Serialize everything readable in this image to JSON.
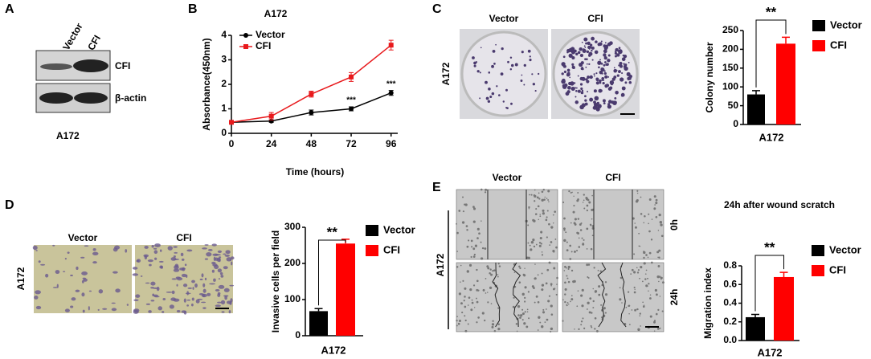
{
  "panel_labels": [
    "A",
    "B",
    "C",
    "D",
    "E"
  ],
  "blot": {
    "lanes": [
      "Vector",
      "CFI"
    ],
    "rows": [
      "CFI",
      "β-actin"
    ],
    "cell_line": "A172"
  },
  "colony_images": {
    "columns": [
      "Vector",
      "CFI"
    ],
    "row": "A172"
  },
  "invasion_images": {
    "columns": [
      "Vector",
      "CFI"
    ],
    "row": "A172"
  },
  "wound_images": {
    "columns": [
      "Vector",
      "CFI"
    ],
    "rows": [
      "0h",
      "24h"
    ],
    "row_group": "A172"
  },
  "chart_data": [
    {
      "type": "line",
      "title": "A172",
      "xlabel": "Time (hours)",
      "ylabel": "Absorbance(450nm)",
      "x": [
        0,
        24,
        48,
        72,
        96
      ],
      "xlim": [
        0,
        100
      ],
      "xticks": [
        0,
        24,
        48,
        72,
        96
      ],
      "ylim": [
        0,
        4
      ],
      "yticks": [
        0,
        1,
        2,
        3,
        4
      ],
      "series": [
        {
          "name": "Vector",
          "color": "#000000",
          "marker": "circle",
          "values": [
            0.45,
            0.5,
            0.85,
            1.0,
            1.65
          ],
          "errors": [
            0.05,
            0.05,
            0.1,
            0.08,
            0.1
          ]
        },
        {
          "name": "CFI",
          "color": "#e8191c",
          "marker": "square",
          "values": [
            0.45,
            0.7,
            1.6,
            2.3,
            3.6
          ],
          "errors": [
            0.05,
            0.15,
            0.12,
            0.18,
            0.2
          ]
        }
      ],
      "annotations": [
        {
          "text": "***",
          "x": 72
        },
        {
          "text": "***",
          "x": 96
        }
      ]
    },
    {
      "type": "bar",
      "xlabel": "A172",
      "ylabel": "Colony number",
      "ylim": [
        0,
        250
      ],
      "yticks": [
        0,
        50,
        100,
        150,
        200,
        250
      ],
      "series": [
        {
          "name": "Vector",
          "color": "#000000",
          "values": [
            80
          ],
          "errors": [
            10
          ]
        },
        {
          "name": "CFI",
          "color": "#ff0000",
          "values": [
            215
          ],
          "errors": [
            17
          ]
        }
      ],
      "annotation": "**"
    },
    {
      "type": "bar",
      "xlabel": "A172",
      "ylabel": "Invasive cells per field",
      "ylim": [
        0,
        300
      ],
      "yticks": [
        0,
        100,
        200,
        300
      ],
      "series": [
        {
          "name": "Vector",
          "color": "#000000",
          "values": [
            68
          ],
          "errors": [
            7
          ]
        },
        {
          "name": "CFI",
          "color": "#ff0000",
          "values": [
            255
          ],
          "errors": [
            12
          ]
        }
      ],
      "annotation": "**"
    },
    {
      "type": "bar",
      "title": "24h after wound scratch",
      "xlabel": "A172",
      "ylabel": "Migration index",
      "ylim": [
        0,
        0.8
      ],
      "yticks": [
        {
          "value": 0,
          "label": "0.0"
        },
        0.2,
        0.4,
        0.6,
        0.8
      ],
      "series": [
        {
          "name": "Vector",
          "color": "#000000",
          "values": [
            0.25
          ],
          "errors": [
            0.03
          ]
        },
        {
          "name": "CFI",
          "color": "#ff0000",
          "values": [
            0.68
          ],
          "errors": [
            0.05
          ]
        }
      ],
      "annotation": "**"
    }
  ]
}
